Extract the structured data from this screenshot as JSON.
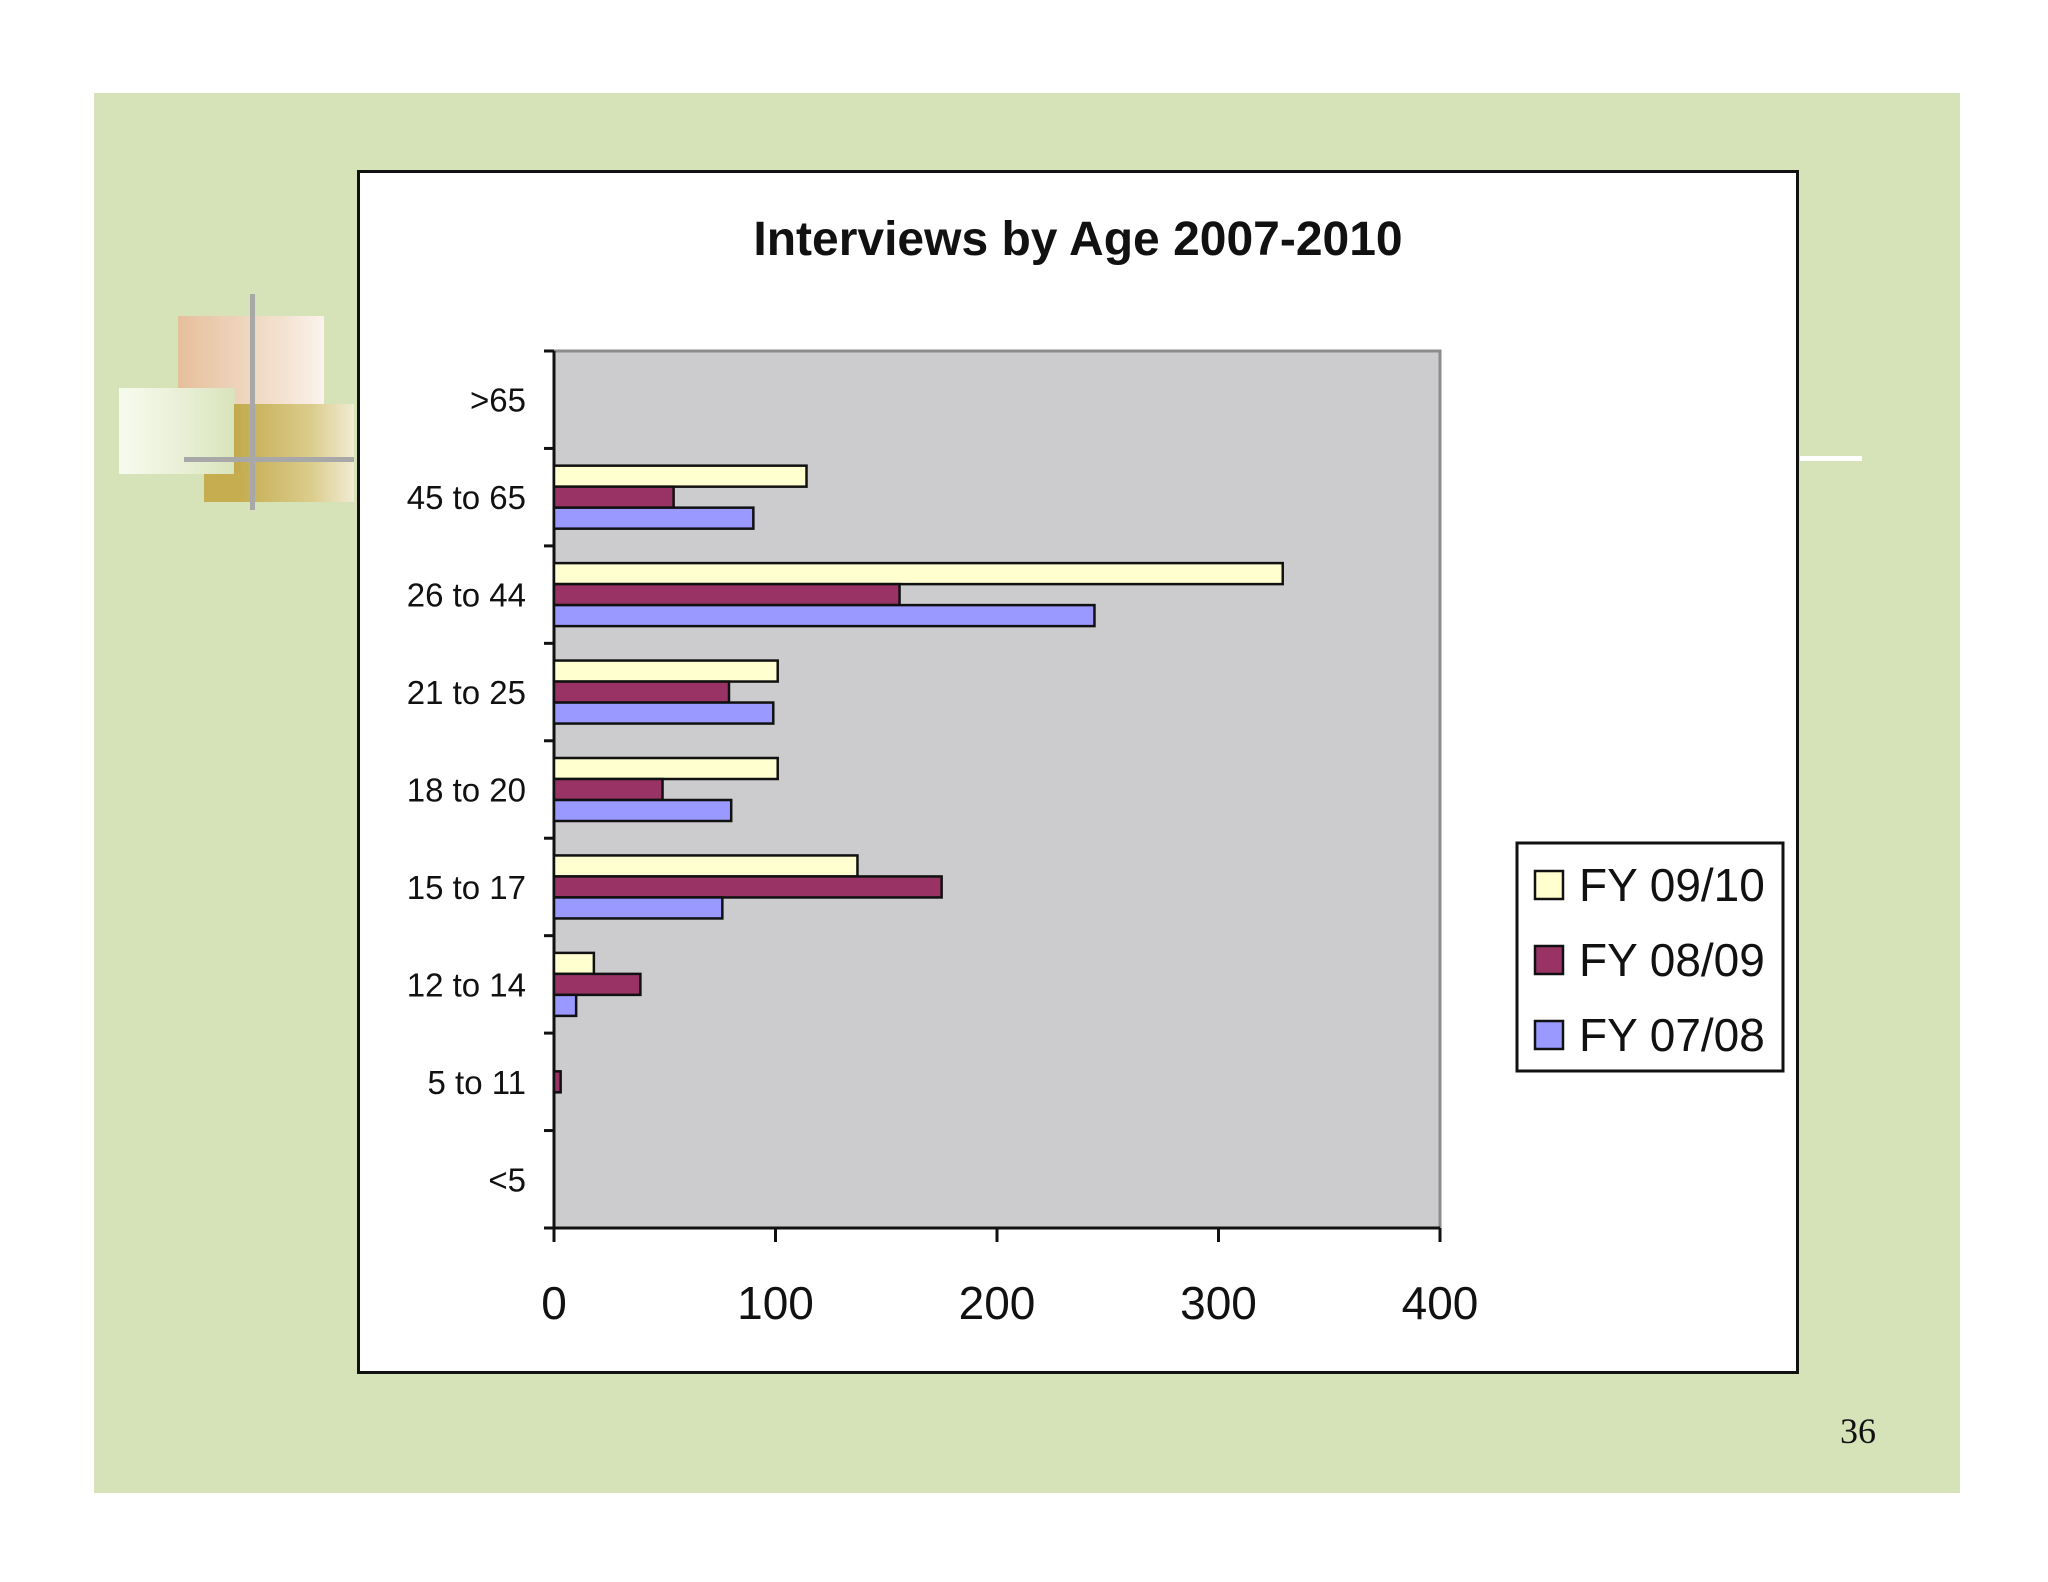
{
  "slide": {
    "page_number": "36",
    "colors": {
      "background": "#d6e2b8",
      "chart_background": "#ffffff",
      "plot_area": "#cccbcd"
    }
  },
  "chart_data": {
    "type": "bar",
    "orientation": "horizontal",
    "title": "Interviews by Age  2007-2010",
    "xlabel": "",
    "ylabel": "",
    "categories": [
      "<5",
      "5 to 11",
      "12 to 14",
      "15 to 17",
      "18 to 20",
      "21 to 25",
      "26 to 44",
      "45 to 65",
      ">65"
    ],
    "series": [
      {
        "name": "FY 09/10",
        "color": "#ffffd0",
        "values": [
          0,
          0,
          18,
          137,
          101,
          101,
          329,
          114,
          0
        ]
      },
      {
        "name": "FY 08/09",
        "color": "#993366",
        "values": [
          0,
          3,
          39,
          175,
          49,
          79,
          156,
          54,
          0
        ]
      },
      {
        "name": "FY 07/08",
        "color": "#9999ff",
        "values": [
          0,
          0,
          10,
          76,
          80,
          99,
          244,
          90,
          0
        ]
      }
    ],
    "xlim": [
      0,
      400
    ],
    "xticks": [
      "0",
      "100",
      "200",
      "300",
      "400"
    ],
    "grid": false,
    "legend": "right"
  }
}
